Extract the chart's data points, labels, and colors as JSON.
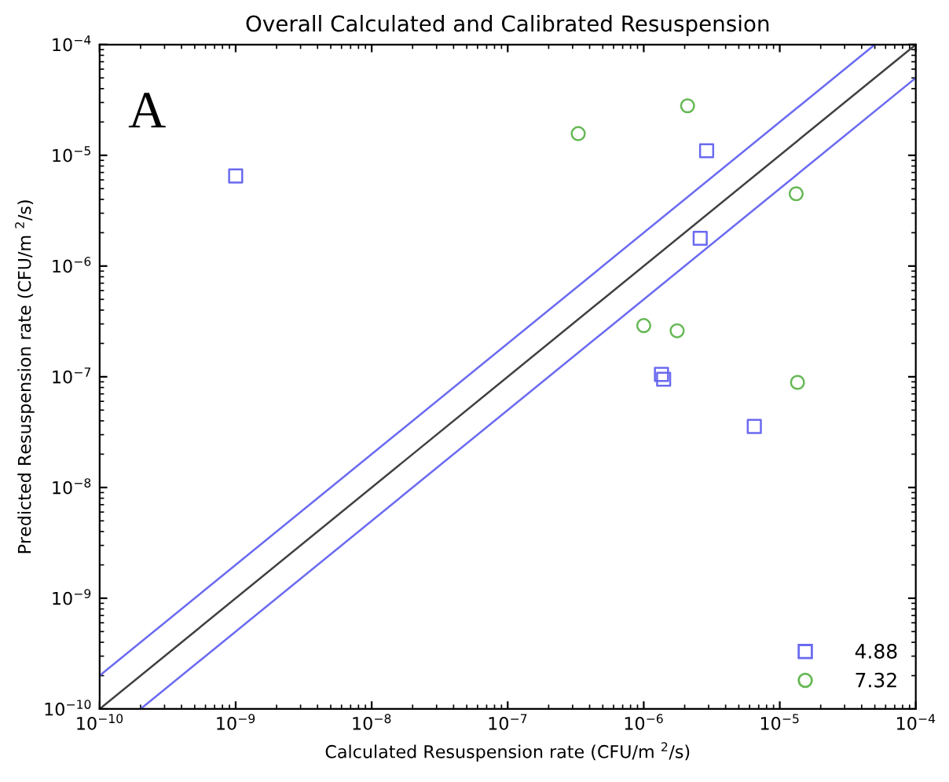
{
  "chart_data": {
    "type": "scatter",
    "title": "Overall Calculated and Calibrated Resuspension",
    "xlabel": "Calculated Resuspension rate (CFU/m $^{2}$/s)",
    "ylabel": "Predicted Resuspension rate (CFU/m $^{2}$/s)",
    "annotations": [
      "A"
    ],
    "log": "xy",
    "grid": false,
    "legend": "bottom right",
    "xlim": [
      1e-10,
      0.0001
    ],
    "ylim": [
      1e-10,
      0.0001
    ],
    "xticks": [
      {
        "value": 1e-10,
        "label": "10$^{−10}$"
      },
      {
        "value": 1e-09,
        "label": "10$^{−9}$"
      },
      {
        "value": 1e-08,
        "label": "10$^{−8}$"
      },
      {
        "value": 1e-07,
        "label": "10$^{−7}$"
      },
      {
        "value": 1e-06,
        "label": "10$^{−6}$"
      },
      {
        "value": 1e-05,
        "label": "10$^{−5}$"
      },
      {
        "value": 0.0001,
        "label": "10$^{−4}$"
      }
    ],
    "yticks": [
      {
        "value": 1e-10,
        "label": "10$^{−10}$"
      },
      {
        "value": 1e-09,
        "label": "10$^{−9}$"
      },
      {
        "value": 1e-08,
        "label": "10$^{−8}$"
      },
      {
        "value": 1e-07,
        "label": "10$^{−7}$"
      },
      {
        "value": 1e-06,
        "label": "10$^{−6}$"
      },
      {
        "value": 1e-05,
        "label": "10$^{−5}$"
      },
      {
        "value": 0.0001,
        "label": "10$^{−4}$"
      }
    ],
    "series": [
      {
        "type": "line",
        "color": "#404040",
        "x": [
          1e-10,
          0.0001
        ],
        "values": [
          1e-10,
          0.0001
        ]
      },
      {
        "type": "line",
        "color": "#6a6af0",
        "x": [
          1e-10,
          5e-05
        ],
        "values": [
          2e-10,
          0.0001
        ]
      },
      {
        "type": "line",
        "color": "#6a6af0",
        "x": [
          2e-10,
          0.0001
        ],
        "values": [
          1e-10,
          5e-05
        ]
      },
      {
        "name": "4.88",
        "color": "#6a6af0",
        "marker": "square",
        "x": [
          1e-09,
          2.9e-06,
          2.6e-06,
          1.35e-06,
          1.4e-06,
          6.5e-06
        ],
        "values": [
          6.5e-06,
          1.1e-05,
          1.78e-06,
          1.05e-07,
          9.5e-08,
          3.56e-08
        ]
      },
      {
        "name": "7.32",
        "color": "#66b855",
        "marker": "circle",
        "x": [
          3.3e-07,
          2.1e-06,
          1.32e-05,
          1e-06,
          1.76e-06,
          1.35e-05
        ],
        "values": [
          1.57e-05,
          2.8e-05,
          4.5e-06,
          2.9e-07,
          2.6e-07,
          8.9e-08
        ]
      }
    ]
  }
}
